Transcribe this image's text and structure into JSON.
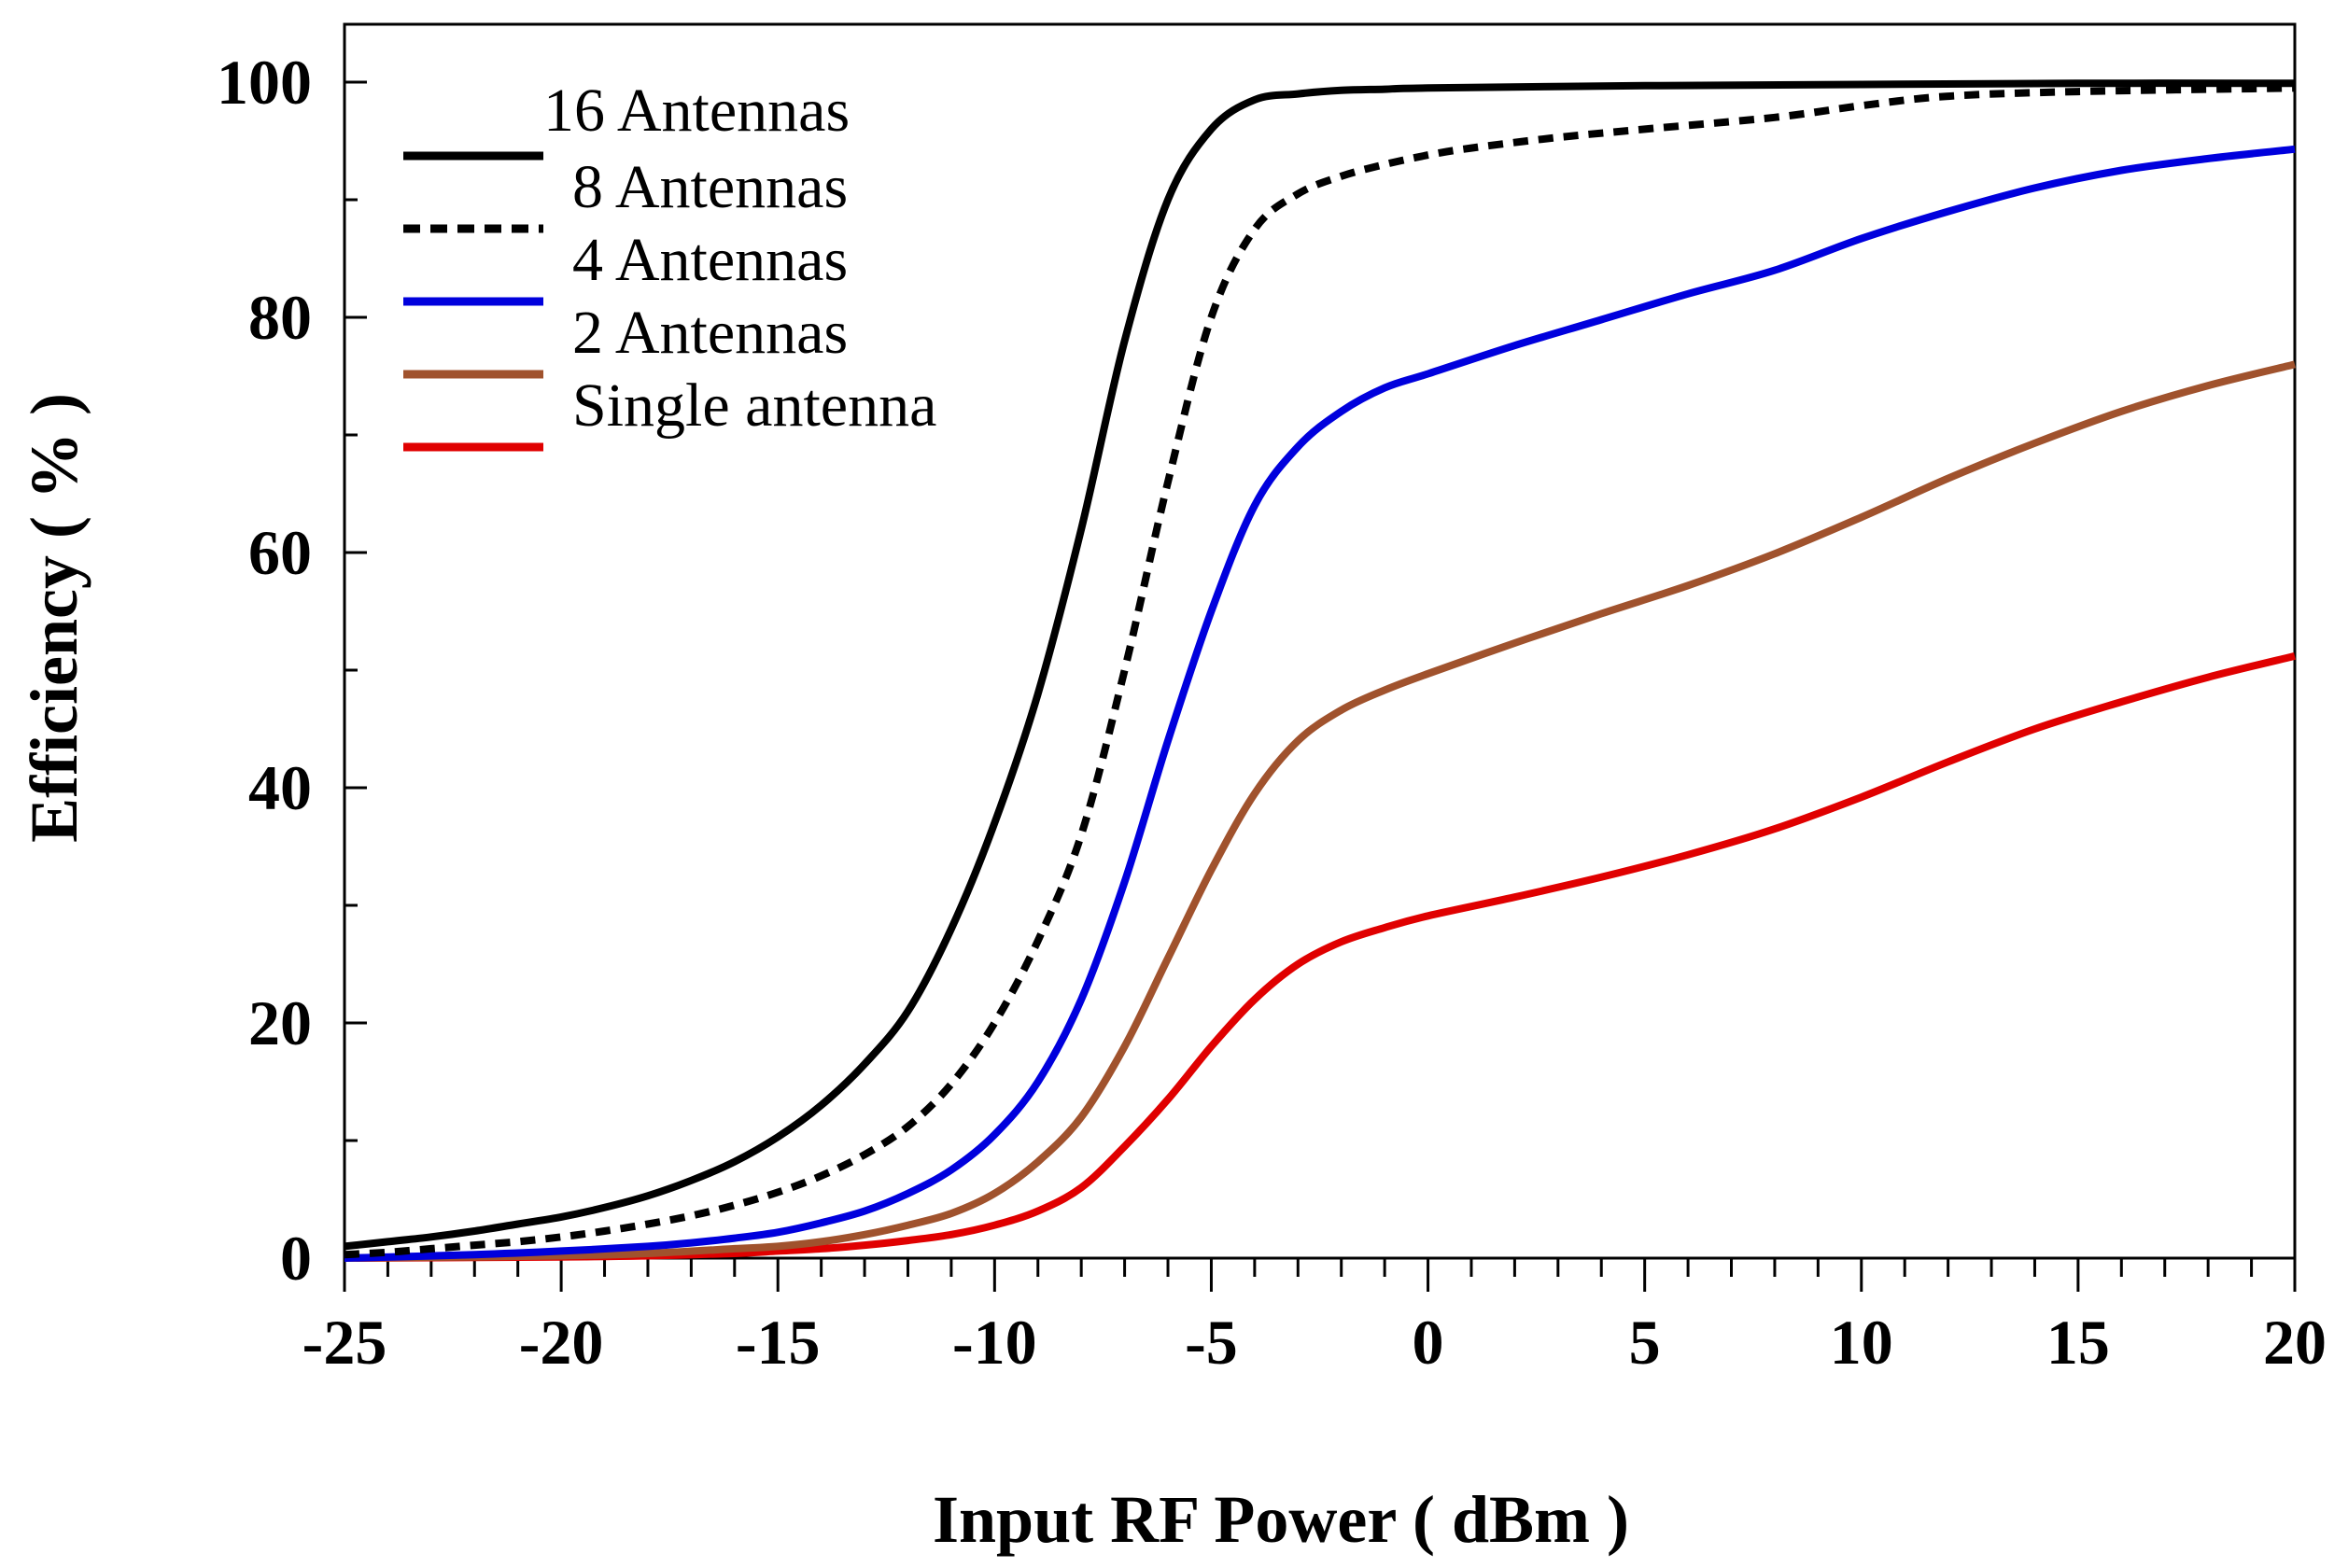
{
  "chart_data": {
    "type": "line",
    "title": "",
    "xlabel": "Input RF Power ( dBm )",
    "ylabel": "Efficiency ( % )",
    "xlim": [
      -25,
      20
    ],
    "ylim": [
      0,
      105
    ],
    "xticks": [
      -25,
      -20,
      -15,
      -10,
      -5,
      0,
      5,
      10,
      15,
      20
    ],
    "yticks": [
      0,
      20,
      40,
      60,
      80,
      100
    ],
    "grid": false,
    "legend_position": "top-left",
    "series": [
      {
        "name": "16 Antennas",
        "color": "#000000",
        "style": "solid",
        "x": [
          -25,
          -24,
          -23,
          -22,
          -21,
          -20,
          -19,
          -18,
          -17,
          -16,
          -15,
          -14,
          -13,
          -12,
          -11,
          -10,
          -9,
          -8,
          -7,
          -6,
          -5,
          -4,
          -3,
          -2,
          -1,
          0,
          5,
          10,
          15,
          20
        ],
        "y": [
          1,
          1.4,
          1.8,
          2.3,
          2.9,
          3.5,
          4.3,
          5.3,
          6.6,
          8.2,
          10.3,
          13,
          16.5,
          21,
          28,
          37,
          48,
          62,
          78,
          90,
          96,
          98.5,
          99,
          99.3,
          99.4,
          99.5,
          99.7,
          99.8,
          99.9,
          99.9
        ]
      },
      {
        "name": "8 Antennas",
        "color": "#000000",
        "style": "dashed",
        "x": [
          -25,
          -24,
          -23,
          -22,
          -21,
          -20,
          -19,
          -18,
          -17,
          -16,
          -15,
          -14,
          -13,
          -12,
          -11,
          -10,
          -9,
          -8,
          -7,
          -6,
          -5,
          -4,
          -3,
          -2,
          -1,
          0,
          1,
          3,
          5,
          8,
          10,
          12,
          15,
          20
        ],
        "y": [
          0.3,
          0.5,
          0.8,
          1.1,
          1.4,
          1.8,
          2.3,
          2.9,
          3.6,
          4.5,
          5.6,
          7,
          8.8,
          11.2,
          14.8,
          20,
          27,
          36,
          50,
          66,
          80,
          87.5,
          90.5,
          92,
          93,
          93.8,
          94.4,
          95.3,
          96,
          97,
          98,
          98.8,
          99.2,
          99.5
        ]
      },
      {
        "name": "4 Antennas",
        "color": "#0000dd",
        "style": "solid",
        "x": [
          -25,
          -22,
          -20,
          -18,
          -17,
          -16,
          -15,
          -14,
          -13,
          -12,
          -11,
          -10,
          -9,
          -8,
          -7,
          -6,
          -5,
          -4,
          -3,
          -2,
          -1,
          0,
          2,
          4,
          6,
          8,
          10,
          12,
          14,
          16,
          18,
          20
        ],
        "y": [
          0,
          0.3,
          0.6,
          1,
          1.3,
          1.7,
          2.2,
          3,
          4,
          5.5,
          7.5,
          10.5,
          15,
          22,
          32,
          44,
          55,
          64,
          69,
          72,
          74,
          75.2,
          77.6,
          79.8,
          82,
          84,
          86.7,
          89,
          91,
          92.5,
          93.5,
          94.3
        ]
      },
      {
        "name": "2 Antennas",
        "color": "#a0522d",
        "style": "solid",
        "x": [
          -25,
          -20,
          -18,
          -16,
          -15,
          -14,
          -13,
          -12,
          -11,
          -10,
          -9,
          -8,
          -7,
          -6,
          -5,
          -4,
          -3,
          -2,
          -1,
          0,
          2,
          4,
          6,
          8,
          10,
          12,
          14,
          16,
          18,
          20
        ],
        "y": [
          0,
          0.2,
          0.4,
          0.8,
          1,
          1.4,
          2,
          2.8,
          3.8,
          5.5,
          8.2,
          12,
          18,
          25.5,
          33,
          39.5,
          44,
          46.6,
          48.3,
          49.7,
          52.3,
          54.8,
          57.2,
          59.9,
          63,
          66.3,
          69.3,
          72,
          74.2,
          76
        ]
      },
      {
        "name": "Single antenna",
        "color": "#e00000",
        "style": "solid",
        "x": [
          -25,
          -20,
          -18,
          -16,
          -15,
          -14,
          -13,
          -12,
          -11,
          -10,
          -9,
          -8,
          -7,
          -6,
          -5,
          -4,
          -3,
          -2,
          -1,
          0,
          2,
          4,
          6,
          8,
          10,
          12,
          14,
          16,
          18,
          20
        ],
        "y": [
          0,
          0.1,
          0.2,
          0.4,
          0.6,
          0.8,
          1.1,
          1.5,
          2,
          2.8,
          4,
          6,
          9.5,
          13.5,
          18,
          22,
          25,
          26.9,
          28.1,
          29.1,
          30.7,
          32.4,
          34.3,
          36.5,
          39.2,
          42.2,
          45,
          47.3,
          49.4,
          51.2
        ]
      }
    ]
  }
}
